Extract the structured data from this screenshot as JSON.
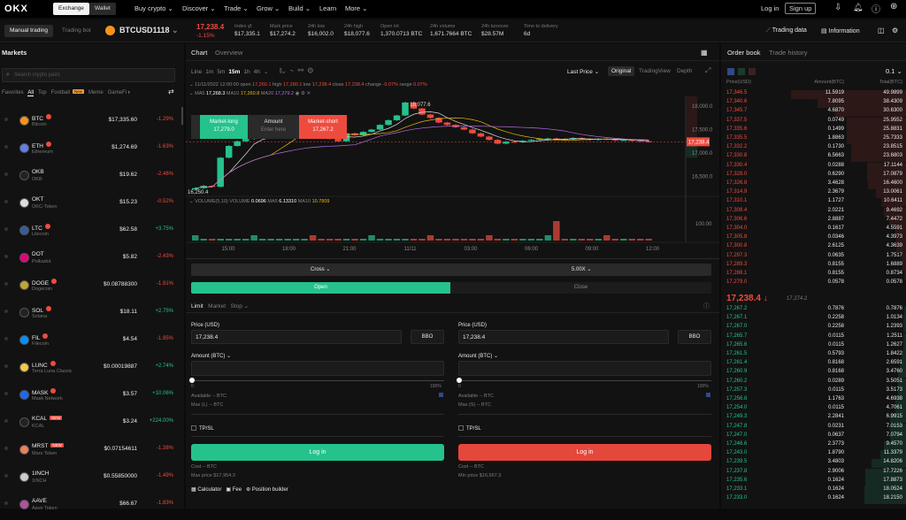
{
  "nav": {
    "logo": "OKX",
    "exchange": "Exchange",
    "wallet": "Wallet",
    "menu": [
      "Buy crypto ⌄",
      "Discover ⌄",
      "Trade ⌄",
      "Grow ⌄",
      "Build ⌄",
      "Learn",
      "More ⌄"
    ],
    "login": "Log in",
    "signup": "Sign up"
  },
  "ticker": {
    "manual": "Manual trading",
    "bot": "Trading bot",
    "symbol": "BTCUSD1118",
    "last": "17,238.4",
    "change": "-1.15%",
    "stats": [
      {
        "l": "Index ⇄",
        "v": "$17,335.1"
      },
      {
        "l": "Mark price",
        "v": "$17,274.2"
      },
      {
        "l": "24h low",
        "v": "$16,002.0"
      },
      {
        "l": "24h high",
        "v": "$18,077.6"
      },
      {
        "l": "Open int",
        "v": "1,370.0713 BTC"
      },
      {
        "l": "24h volume",
        "v": "1,671.7664 BTC"
      },
      {
        "l": "24h turnover",
        "v": "$28.57M"
      },
      {
        "l": "Time to delivery",
        "v": "6d"
      }
    ],
    "trading_data": "Trading data",
    "information": "Information"
  },
  "markets": {
    "title": "Markets",
    "search_placeholder": "Search crypto pairs",
    "tabs": [
      "Favorites",
      "All",
      "Top",
      "Football",
      "Meme",
      "GameFi"
    ],
    "new_badge": "New",
    "items": [
      {
        "sym": "BTC",
        "name": "Bitcoin",
        "price": "$17,335.60",
        "change": "-1.29%",
        "up": false,
        "badge": "hot",
        "color": "#f7931a"
      },
      {
        "sym": "ETH",
        "name": "Ethereum",
        "price": "$1,274.69",
        "change": "-1.63%",
        "up": false,
        "badge": "hot",
        "color": "#627eea"
      },
      {
        "sym": "OKB",
        "name": "OKB",
        "price": "$19.62",
        "change": "-2.46%",
        "up": false,
        "badge": "",
        "color": "#222"
      },
      {
        "sym": "OKT",
        "name": "OKC-Token",
        "price": "$15.23",
        "change": "-0.52%",
        "up": false,
        "badge": "",
        "color": "#ddd"
      },
      {
        "sym": "LTC",
        "name": "Litecoin",
        "price": "$62.58",
        "change": "+3.75%",
        "up": true,
        "badge": "hot",
        "color": "#345d9d"
      },
      {
        "sym": "DOT",
        "name": "Polkadot",
        "price": "$5.82",
        "change": "-2.43%",
        "up": false,
        "badge": "",
        "color": "#e6007a"
      },
      {
        "sym": "DOGE",
        "name": "Dogecoin",
        "price": "$0.08788300",
        "change": "-1.91%",
        "up": false,
        "badge": "hot",
        "color": "#c2a633"
      },
      {
        "sym": "SOL",
        "name": "Solana",
        "price": "$18.11",
        "change": "+2.75%",
        "up": true,
        "badge": "hot",
        "color": "#222"
      },
      {
        "sym": "FIL",
        "name": "Filecoin",
        "price": "$4.54",
        "change": "-1.95%",
        "up": false,
        "badge": "hot",
        "color": "#0090ff"
      },
      {
        "sym": "LUNC",
        "name": "Terra Luna Classic",
        "price": "$0.00019887",
        "change": "+2.74%",
        "up": true,
        "badge": "hot",
        "color": "#f2c94c"
      },
      {
        "sym": "MASK",
        "name": "Mask Network",
        "price": "$3.57",
        "change": "+10.06%",
        "up": true,
        "badge": "hot",
        "color": "#1c68f3"
      },
      {
        "sym": "KCAL",
        "name": "KCAL",
        "price": "$3.24",
        "change": "+224.00%",
        "up": true,
        "badge": "new",
        "color": "#222"
      },
      {
        "sym": "MRST",
        "name": "Mars Token",
        "price": "$0.07154611",
        "change": "-1.38%",
        "up": false,
        "badge": "new",
        "color": "#e8835a"
      },
      {
        "sym": "1INCH",
        "name": "1INCH",
        "price": "$0.55850000",
        "change": "-1.49%",
        "up": false,
        "badge": "",
        "color": "#ccc"
      },
      {
        "sym": "AAVE",
        "name": "Aave Token",
        "price": "$66.67",
        "change": "-1.83%",
        "up": false,
        "badge": "",
        "color": "#b6509e"
      }
    ]
  },
  "chart": {
    "tabs": [
      "Chart",
      "Overview"
    ],
    "intervals": [
      "Line",
      "1m",
      "5m",
      "15m",
      "1h",
      "4h"
    ],
    "active_interval": "15m",
    "ohlc": {
      "date": "11/11/2022",
      "time": "12:00:00",
      "open": "17,260.1",
      "high": "17,280.1",
      "low": "17,238.4",
      "close": "17,238.4",
      "change": "-0.07%",
      "range": "0.07%"
    },
    "ma": {
      "ma5": "17,268.3",
      "ma10": "17,260.8",
      "ma20": "17,279.2"
    },
    "price_type": "Last Price ⌄",
    "views": [
      "Original",
      "TradingView",
      "Depth"
    ],
    "high_label": "18,077.6",
    "low_label": "16,250.4",
    "current": "17,238.4",
    "y_ticks": [
      "18,000.0",
      "17,500.0",
      "17,000.0",
      "16,500.0"
    ],
    "vol_tick": "100.00",
    "x_ticks": [
      "15:00",
      "18:00",
      "21:00",
      "11/11",
      "03:00",
      "06:00",
      "09:00",
      "12:00"
    ],
    "volume": {
      "label": "VOLUME(5,10)",
      "volume": "0.0696",
      "ma5": "6.13310",
      "ma10": "10.7809"
    },
    "quick": {
      "long": "Market-long",
      "long_price": "17,279.0",
      "amount": "Amount",
      "amount_ph": "Enter here",
      "short": "Market-short",
      "short_price": "17,267.2"
    },
    "closes": [
      16250,
      16300,
      16280,
      16900,
      17150,
      17250,
      17300,
      17350,
      17380,
      17400,
      17420,
      17450,
      17480,
      17500,
      17400,
      17350,
      17300,
      17250,
      17420,
      17380,
      17450,
      17500,
      17600,
      17700,
      17800,
      18077,
      17950,
      17820,
      17750,
      17650,
      17600,
      17550,
      17500,
      17420,
      17350,
      17280,
      17200,
      17240,
      17230,
      17260,
      17280,
      17300,
      17310,
      17300,
      17290,
      17320,
      17300,
      17280,
      17300,
      17290,
      17270,
      17280,
      17260,
      17250,
      17238
    ]
  },
  "order": {
    "margin": "Cross ⌄",
    "leverage": "5.00X ⌄",
    "open": "Open",
    "close": "Close",
    "types": [
      "Limit",
      "Market",
      "Stop ⌄"
    ],
    "buy": {
      "price_label": "Price (USD)",
      "price": "17,238.4",
      "bbo": "BBO",
      "amount_label": "Amount (BTC) ⌄",
      "min": "0",
      "max": "100%",
      "available": "Available -- BTC",
      "maxl": "Max (L) -- BTC",
      "tpsl": "TP/SL",
      "login": "Log in",
      "cost": "Cost -- BTC",
      "limit": "Max price $17,954.3"
    },
    "sell": {
      "price_label": "Price (USD)",
      "price": "17,238.4",
      "bbo": "BBO",
      "amount_label": "Amount (BTC) ⌄",
      "min": "0",
      "max": "100%",
      "available": "Available -- BTC",
      "maxl": "Max (S) -- BTC",
      "tpsl": "TP/SL",
      "login": "Log in",
      "cost": "Cost -- BTC",
      "limit": "Min price $16,567.3"
    },
    "tools": [
      "Calculator",
      "Fee",
      "Position builder"
    ]
  },
  "book": {
    "tabs": [
      "Order book",
      "Trade history"
    ],
    "step": "0.1 ⌄",
    "headers": [
      "Price(USD)",
      "Amount(BTC)",
      "Total(BTC)"
    ],
    "last": "17,238.4 ↓",
    "mark": "17,274.2",
    "asks": [
      [
        "17,346.5",
        "11.5919",
        "49.9899"
      ],
      [
        "17,340.6",
        "7.8095",
        "38.4309"
      ],
      [
        "17,345.7",
        "4.6870",
        "30.6300"
      ],
      [
        "17,337.5",
        "0.0749",
        "25.9552"
      ],
      [
        "17,335.6",
        "0.1499",
        "25.8831"
      ],
      [
        "17,335.5",
        "1.8863",
        "25.7333"
      ],
      [
        "17,332.2",
        "0.1730",
        "23.8515"
      ],
      [
        "17,330.8",
        "6.5663",
        "23.6803"
      ],
      [
        "17,330.4",
        "0.0288",
        "17.1144"
      ],
      [
        "17,328.0",
        "0.6290",
        "17.0879"
      ],
      [
        "17,326.8",
        "3.4628",
        "16.4600"
      ],
      [
        "17,314.9",
        "2.3679",
        "13.0061"
      ],
      [
        "17,310.1",
        "1.1727",
        "10.6411"
      ],
      [
        "17,308.4",
        "2.0221",
        "9.4692"
      ],
      [
        "17,306.6",
        "2.8887",
        "7.4472"
      ],
      [
        "17,304.0",
        "0.1617",
        "4.5591"
      ],
      [
        "17,305.8",
        "0.0346",
        "4.3973"
      ],
      [
        "17,300.8",
        "2.6125",
        "4.3639"
      ],
      [
        "17,297.3",
        "0.0635",
        "1.7517"
      ],
      [
        "17,289.3",
        "0.8155",
        "1.6889"
      ],
      [
        "17,288.1",
        "0.8155",
        "0.8734"
      ],
      [
        "17,279.0",
        "0.0578",
        "0.0578"
      ]
    ],
    "bids": [
      [
        "17,267.2",
        "0.7876",
        "0.7876"
      ],
      [
        "17,267.1",
        "0.2258",
        "1.0134"
      ],
      [
        "17,267.0",
        "0.2258",
        "1.2393"
      ],
      [
        "17,265.7",
        "0.0115",
        "1.2511"
      ],
      [
        "17,265.6",
        "0.0115",
        "1.2627"
      ],
      [
        "17,261.5",
        "0.5793",
        "1.8422"
      ],
      [
        "17,261.4",
        "0.8168",
        "2.6591"
      ],
      [
        "17,260.9",
        "0.8168",
        "3.4760"
      ],
      [
        "17,260.2",
        "0.0289",
        "3.5051"
      ],
      [
        "17,257.3",
        "0.0115",
        "3.5173"
      ],
      [
        "17,256.8",
        "1.1763",
        "4.6938"
      ],
      [
        "17,254.0",
        "0.0115",
        "4.7061"
      ],
      [
        "17,249.3",
        "2.2841",
        "6.9915"
      ],
      [
        "17,247.8",
        "0.0231",
        "7.0153"
      ],
      [
        "17,247.0",
        "0.0637",
        "7.0794"
      ],
      [
        "17,246.6",
        "2.3773",
        "9.4570"
      ],
      [
        "17,243.0",
        "1.8790",
        "11.3379"
      ],
      [
        "17,239.5",
        "3.4803",
        "14.8206"
      ],
      [
        "17,237.8",
        "2.9006",
        "17.7226"
      ],
      [
        "17,235.6",
        "0.1624",
        "17.8873"
      ],
      [
        "17,233.1",
        "0.1624",
        "18.0524"
      ],
      [
        "17,233.0",
        "0.1624",
        "18.2150"
      ]
    ]
  },
  "colors": {
    "green": "#25c28c",
    "red": "#ee4b3f",
    "bg": "#0b0b0b",
    "panel": "#121212"
  }
}
